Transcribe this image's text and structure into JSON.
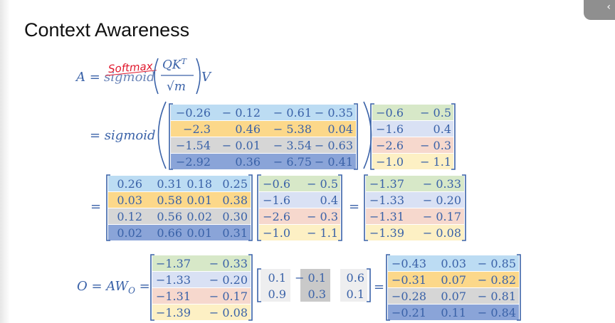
{
  "title": "Context Awareness",
  "annotation": "Softmax",
  "eq1": {
    "lhs": "A =",
    "func": "sigmoid",
    "num": "QK",
    "sup": "T",
    "den": "√m",
    "rhs": "V"
  },
  "eq2": {
    "lhs": "= sigmoid"
  },
  "eq3": {
    "lhs": "=",
    "mid": "="
  },
  "eq4": {
    "lhs": "O = AW",
    "sub": "O",
    "eq": "=",
    "eq2": "="
  },
  "row_colors": [
    "#bcdcf3",
    "#fcd88a",
    "#d6d6d6",
    "#8aa4d8"
  ],
  "v_row_colors": [
    "#d7e8c8",
    "#d9e1f4",
    "#f6d8cd",
    "#fdf0c4"
  ],
  "qk": [
    [
      "−0.26",
      "− 0.12",
      "− 0.61",
      "− 0.35"
    ],
    [
      "−2.3",
      "0.46",
      "− 5.38",
      "0.04"
    ],
    [
      "−1.54",
      "− 0.01",
      "− 3.54",
      "− 0.63"
    ],
    [
      "−2.92",
      "0.36",
      "− 6.75",
      "− 0.41"
    ]
  ],
  "v": [
    [
      "−0.6",
      "− 0.5"
    ],
    [
      "−1.6",
      "0.4"
    ],
    [
      "−2.6",
      "− 0.3"
    ],
    [
      "−1.0",
      "− 1.1"
    ]
  ],
  "a": [
    [
      "0.26",
      "0.31",
      "0.18",
      "0.25"
    ],
    [
      "0.03",
      "0.58",
      "0.01",
      "0.38"
    ],
    [
      "0.12",
      "0.56",
      "0.02",
      "0.30"
    ],
    [
      "0.02",
      "0.66",
      "0.01",
      "0.31"
    ]
  ],
  "av": [
    [
      "−1.37",
      "− 0.33"
    ],
    [
      "−1.33",
      "− 0.20"
    ],
    [
      "−1.31",
      "− 0.17"
    ],
    [
      "−1.39",
      "− 0.08"
    ]
  ],
  "wo": [
    [
      "0.1",
      "− 0.1",
      "0.6"
    ],
    [
      "0.9",
      "0.3",
      "0.1"
    ]
  ],
  "o": [
    [
      "−0.43",
      "0.03",
      "− 0.85"
    ],
    [
      "−0.31",
      "0.07",
      "− 0.82"
    ],
    [
      "−0.28",
      "0.07",
      "− 0.81"
    ],
    [
      "−0.21",
      "0.11",
      "− 0.84"
    ]
  ]
}
